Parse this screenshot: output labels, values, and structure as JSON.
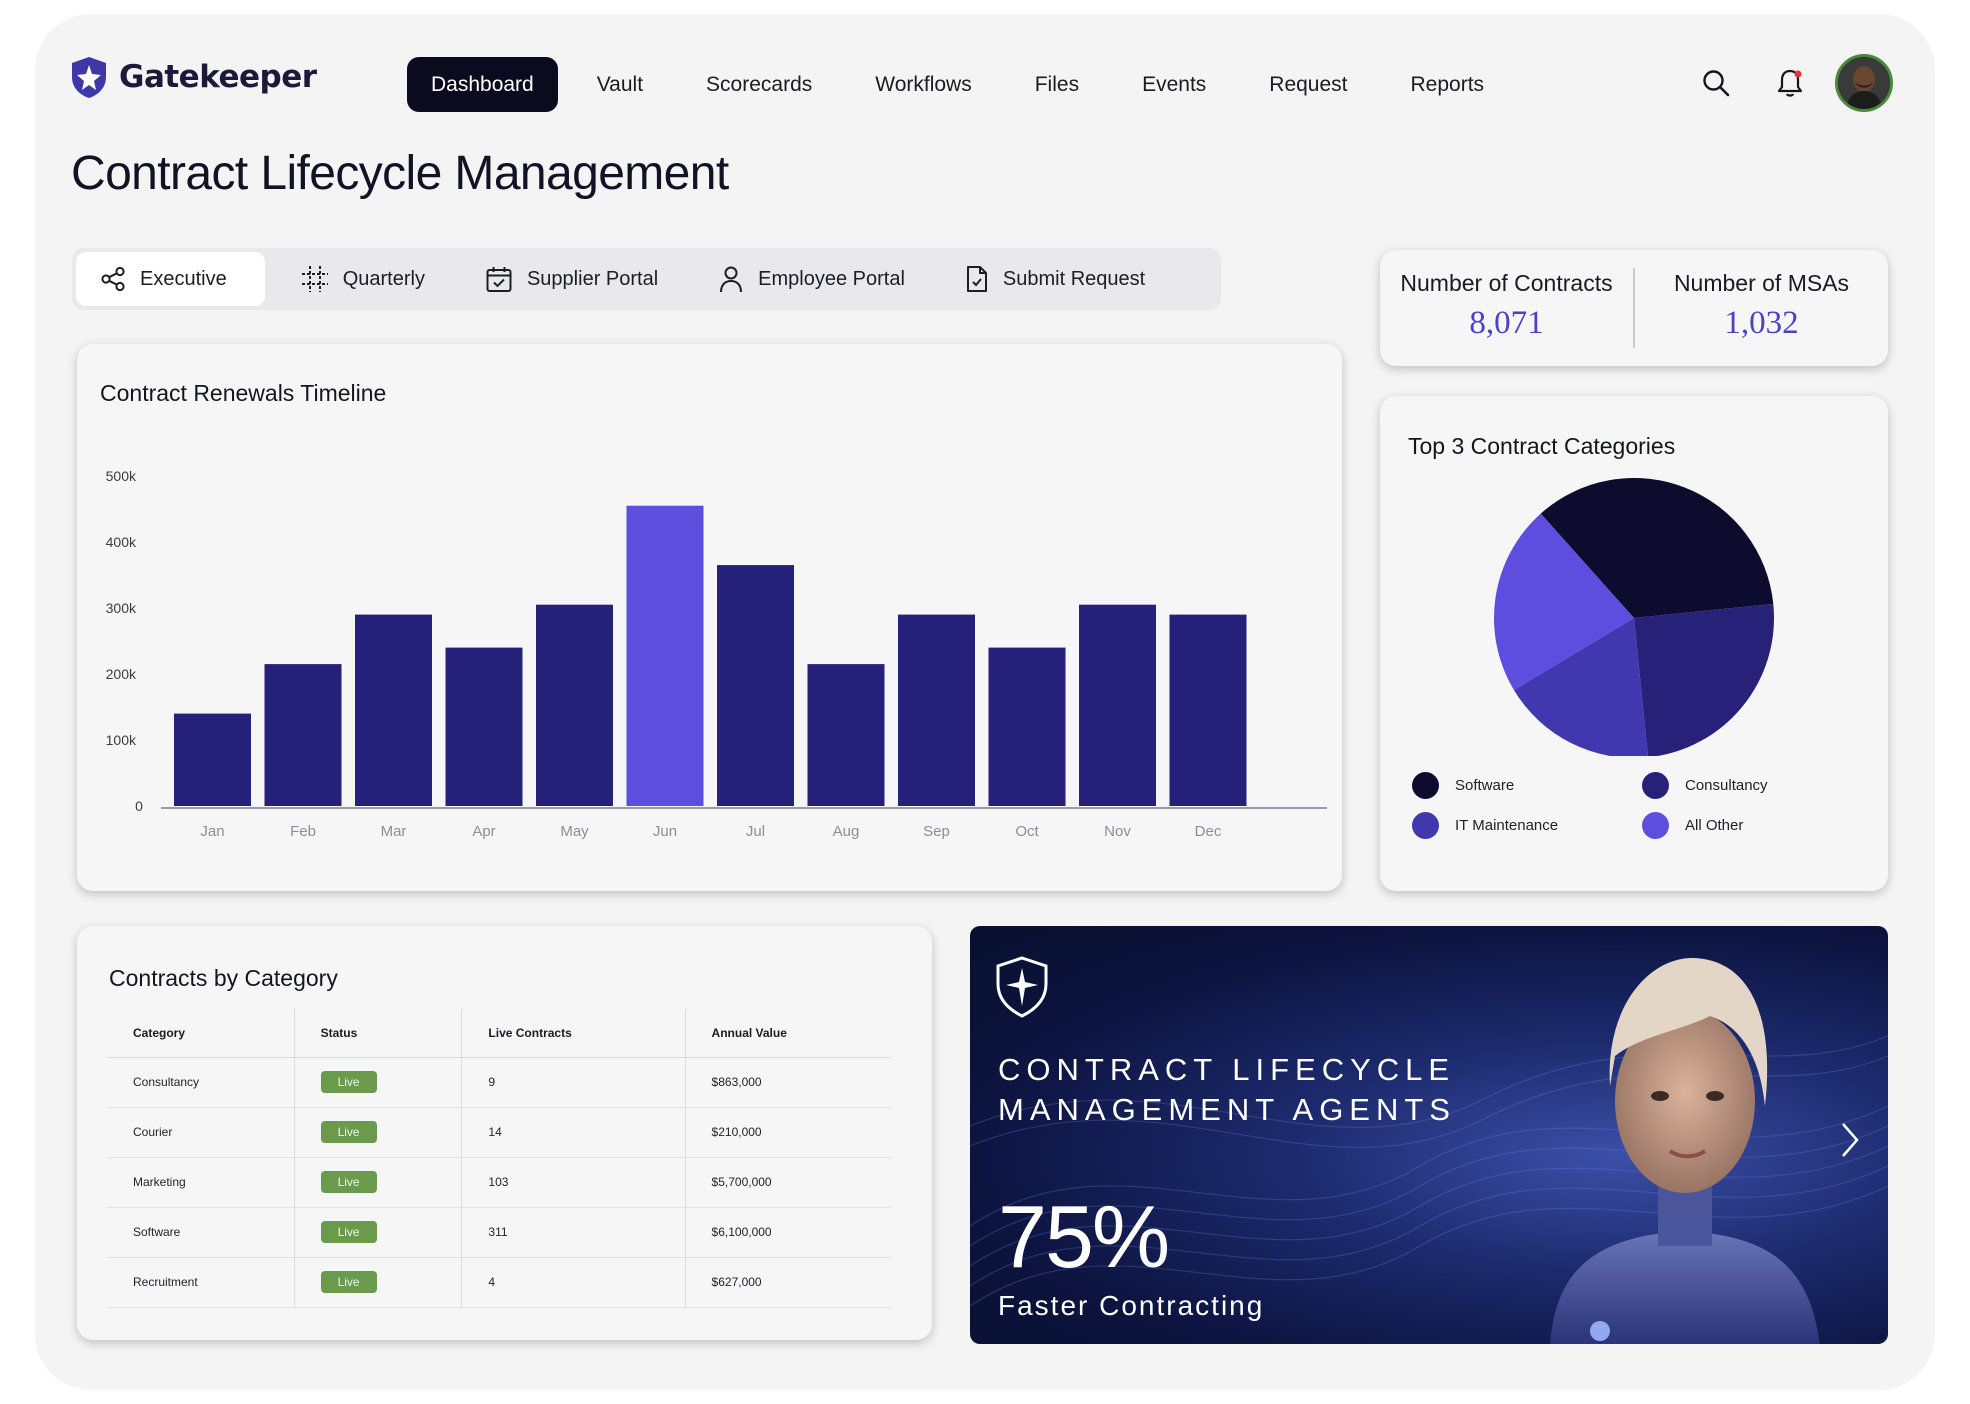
{
  "brand": {
    "name": "Gatekeeper",
    "color": "#3f36a8"
  },
  "nav": {
    "items": [
      {
        "label": "Dashboard",
        "active": true
      },
      {
        "label": "Vault"
      },
      {
        "label": "Scorecards"
      },
      {
        "label": "Workflows"
      },
      {
        "label": "Files"
      },
      {
        "label": "Events"
      },
      {
        "label": "Request"
      },
      {
        "label": "Reports"
      }
    ],
    "icons": [
      "search-icon",
      "bell-icon",
      "avatar"
    ]
  },
  "page": {
    "title": "Contract Lifecycle Management"
  },
  "tabs": [
    {
      "label": "Executive",
      "icon": "share-icon",
      "active": true
    },
    {
      "label": "Quarterly",
      "icon": "grid-icon"
    },
    {
      "label": "Supplier Portal",
      "icon": "calendar-check-icon"
    },
    {
      "label": "Employee Portal",
      "icon": "person-icon"
    },
    {
      "label": "Submit Request",
      "icon": "document-icon"
    }
  ],
  "kpis": [
    {
      "label": "Number of Contracts",
      "value": "8,071"
    },
    {
      "label": "Number of MSAs",
      "value": "1,032"
    }
  ],
  "renewals": {
    "title": "Contract Renewals Timeline"
  },
  "chart_data": [
    {
      "type": "bar",
      "title": "Contract Renewals Timeline",
      "categories": [
        "Jan",
        "Feb",
        "Mar",
        "Apr",
        "May",
        "Jun",
        "Jul",
        "Aug",
        "Sep",
        "Oct",
        "Nov",
        "Dec"
      ],
      "values": [
        140000,
        215000,
        290000,
        240000,
        305000,
        455000,
        365000,
        215000,
        290000,
        240000,
        305000,
        290000
      ],
      "highlight_index": 5,
      "ylim": [
        0,
        500000
      ],
      "yticks": [
        "0",
        "100k",
        "200k",
        "300k",
        "400k",
        "500k"
      ],
      "colors": {
        "bar": "#25207a",
        "highlight": "#5e4ee0",
        "axis": "#9a9aa2"
      },
      "grid": false
    },
    {
      "type": "pie",
      "title": "Top 3 Contract Categories",
      "labels": [
        "Software",
        "Consultancy",
        "IT Maintenance",
        "All Other"
      ],
      "values": [
        35,
        25,
        18,
        22
      ],
      "colors": [
        "#0e0c2e",
        "#28217a",
        "#4138b0",
        "#5d4ee0"
      ]
    }
  ],
  "pie": {
    "title": "Top 3 Contract Categories",
    "legend": [
      {
        "label": "Software",
        "color": "#0e0c2e"
      },
      {
        "label": "Consultancy",
        "color": "#28217a"
      },
      {
        "label": "IT Maintenance",
        "color": "#4138b0"
      },
      {
        "label": "All Other",
        "color": "#5d4ee0"
      }
    ]
  },
  "category_table": {
    "title": "Contracts by Category",
    "columns": [
      "Category",
      "Status",
      "Live Contracts",
      "Annual Value"
    ],
    "rows": [
      {
        "category": "Consultancy",
        "status": "Live",
        "live": "9",
        "value": "$863,000"
      },
      {
        "category": "Courier",
        "status": "Live",
        "live": "14",
        "value": "$210,000"
      },
      {
        "category": "Marketing",
        "status": "Live",
        "live": "103",
        "value": "$5,700,000"
      },
      {
        "category": "Software",
        "status": "Live",
        "live": "311",
        "value": "$6,100,000"
      },
      {
        "category": "Recruitment",
        "status": "Live",
        "live": "4",
        "value": "$627,000"
      }
    ]
  },
  "promo": {
    "heading_line1": "CONTRACT LIFECYCLE",
    "heading_line2": "MANAGEMENT AGENTS",
    "stat": "75%",
    "subtitle": "Faster  Contracting",
    "icons": [
      "shield-star-icon",
      "chevron-right-icon"
    ]
  }
}
